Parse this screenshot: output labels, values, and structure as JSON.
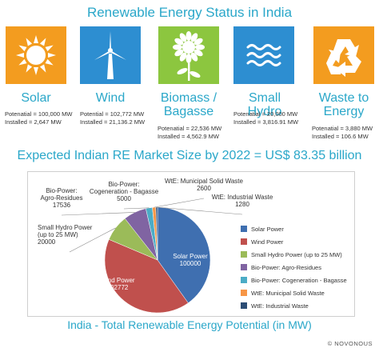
{
  "header": {
    "title": "Renewable Energy Status in India",
    "subtitle": "Expected Indian RE Market Size by 2022 = US$ 83.35 billion"
  },
  "sources": [
    {
      "name": "Solar",
      "icon": "sun-icon",
      "color": "#f39c1f",
      "potential": "Potenatial = 100,000 MW",
      "installed": "Installed = 2,647 MW"
    },
    {
      "name": "Wind",
      "icon": "wind-turbine-icon",
      "color": "#2d8ed1",
      "potential": "Potential = 102,772 MW",
      "installed": "Installed = 21,136.2 MW"
    },
    {
      "name": "Biomass / Bagasse",
      "icon": "sunflower-icon",
      "color": "#8cc63f",
      "potential": "Potenatial = 22,536 MW",
      "installed": "Installed = 4,562.9 MW"
    },
    {
      "name": "Small Hydro",
      "icon": "water-waves-icon",
      "color": "#2d8ed1",
      "potential": "Potenatial = 20,000 MW",
      "installed": "Installed = 3,816.91 MW"
    },
    {
      "name": "Waste to Energy",
      "icon": "recycle-icon",
      "color": "#f39c1f",
      "potential": "Potenatial = 3,880 MW",
      "installed": "Installed = 106.6 MW"
    }
  ],
  "chart_data": {
    "type": "pie",
    "title": "India - Total Renewable Energy Potential (in MW)",
    "slices": [
      {
        "name": "Solar Power",
        "value": 100000,
        "color": "#3f6fb0"
      },
      {
        "name": "Wind Power",
        "value": 102772,
        "color": "#c0504d"
      },
      {
        "name": "Small Hydro Power (up to 25 MW)",
        "value": 20000,
        "color": "#9bbb59"
      },
      {
        "name": "Bio-Power: Agro-Residues",
        "value": 17536,
        "color": "#8064a2"
      },
      {
        "name": "Bio-Power: Cogeneration - Bagasse",
        "value": 5000,
        "color": "#4bacc6"
      },
      {
        "name": "WtE: Municipal Solid Waste",
        "value": 2600,
        "color": "#f79646"
      },
      {
        "name": "WtE: Industrial Waste",
        "value": 1280,
        "color": "#2c4d75"
      }
    ],
    "callouts": [
      {
        "label": "Solar Power",
        "value": "100000"
      },
      {
        "label": "Wind Power",
        "value": "102772"
      },
      {
        "label": "Small Hydro Power\n(up to 25 MW)",
        "value": "20000"
      },
      {
        "label": "Bio-Power:\nAgro-Residues",
        "value": "17536"
      },
      {
        "label": "Bio-Power:\nCogeneration - Bagasse",
        "value": "5000"
      },
      {
        "label": "WtE: Municipal Solid Waste",
        "value": "2600"
      },
      {
        "label": "WtE: Industrial Waste",
        "value": "1280"
      }
    ],
    "legend": "right"
  },
  "footer": {
    "copyright": "© NOVONOUS"
  }
}
